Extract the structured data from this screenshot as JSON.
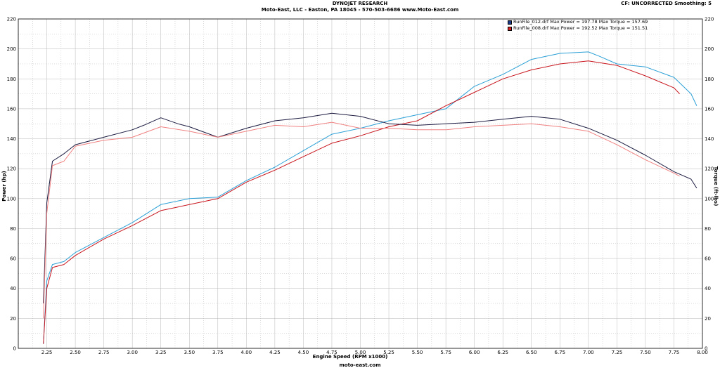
{
  "header": {
    "title": "DYNOJET RESEARCH",
    "subtitle": "Moto-East, LLC - Easton, PA 18045 - 570-503-6686 www.Moto-East.com",
    "correction": "CF: UNCORRECTED  Smoothing: 5",
    "footer": "moto-east.com"
  },
  "legend": [
    {
      "text": "RunFile_012.drf Max Power = 197.78    Max Torque = 157.69",
      "color": "#1b3a8c"
    },
    {
      "text": "RunFile_008.drf Max Power = 192.52    Max Torque = 151.51",
      "color": "#d42020"
    }
  ],
  "colors": {
    "run012_power": "#2a9fd6",
    "run012_torque": "#1a1a40",
    "run008_power": "#c8141c",
    "run008_torque": "#f08080",
    "grid": "#b8b8b8"
  },
  "chart_data": {
    "type": "line",
    "xlabel": "Engine Speed (RPM x1000)",
    "ylabel_left": "Power (hp)",
    "ylabel_right": "Torque (ft-lbs)",
    "xlim": [
      2.0,
      8.0
    ],
    "ylim": [
      0,
      220
    ],
    "xticks": [
      "2.25",
      "2.50",
      "2.75",
      "3.00",
      "3.25",
      "3.50",
      "3.75",
      "4.00",
      "4.25",
      "4.50",
      "4.75",
      "5.00",
      "5.25",
      "5.50",
      "5.75",
      "6.00",
      "6.25",
      "6.50",
      "6.75",
      "7.00",
      "7.25",
      "7.50",
      "7.75",
      "8.00"
    ],
    "yticks": [
      "0",
      "20",
      "40",
      "60",
      "80",
      "100",
      "120",
      "140",
      "160",
      "180",
      "200",
      "220"
    ],
    "grid": true,
    "series": [
      {
        "key": "run012_power",
        "x": [
          2.22,
          2.25,
          2.3,
          2.4,
          2.5,
          2.75,
          3.0,
          3.25,
          3.5,
          3.75,
          4.0,
          4.25,
          4.5,
          4.75,
          5.0,
          5.25,
          5.5,
          5.75,
          6.0,
          6.25,
          6.5,
          6.75,
          7.0,
          7.1,
          7.25,
          7.5,
          7.75,
          7.9,
          7.95
        ],
        "y": [
          3,
          45,
          56,
          58,
          64,
          74,
          84,
          96,
          100,
          101,
          112,
          121,
          132,
          143,
          147,
          152,
          156,
          160,
          175,
          183,
          193,
          197,
          198,
          195,
          190,
          188,
          181,
          170,
          162
        ]
      },
      {
        "key": "run008_power",
        "x": [
          2.22,
          2.25,
          2.3,
          2.4,
          2.5,
          2.75,
          3.0,
          3.25,
          3.5,
          3.75,
          4.0,
          4.25,
          4.5,
          4.75,
          5.0,
          5.25,
          5.5,
          5.75,
          6.0,
          6.25,
          6.5,
          6.75,
          7.0,
          7.25,
          7.5,
          7.75,
          7.8
        ],
        "y": [
          3,
          40,
          54,
          56,
          62,
          73,
          82,
          92,
          96,
          100,
          111,
          119,
          128,
          137,
          142,
          148,
          152,
          162,
          171,
          180,
          186,
          190,
          192,
          189,
          182,
          174,
          170
        ]
      },
      {
        "key": "run012_torque",
        "x": [
          2.22,
          2.25,
          2.3,
          2.4,
          2.5,
          2.75,
          3.0,
          3.1,
          3.25,
          3.4,
          3.5,
          3.75,
          4.0,
          4.25,
          4.5,
          4.75,
          5.0,
          5.25,
          5.5,
          5.75,
          6.0,
          6.25,
          6.5,
          6.75,
          7.0,
          7.25,
          7.5,
          7.75,
          7.9,
          7.95
        ],
        "y": [
          30,
          97,
          125,
          130,
          136,
          141,
          146,
          149,
          154,
          150,
          148,
          141,
          147,
          152,
          154,
          157,
          155,
          150,
          149,
          150,
          151,
          153,
          155,
          153,
          147,
          139,
          129,
          118,
          113,
          107
        ]
      },
      {
        "key": "run008_torque",
        "x": [
          2.22,
          2.25,
          2.3,
          2.4,
          2.5,
          2.75,
          3.0,
          3.25,
          3.5,
          3.75,
          4.0,
          4.25,
          4.5,
          4.75,
          5.0,
          5.25,
          5.5,
          5.75,
          6.0,
          6.25,
          6.5,
          6.75,
          7.0,
          7.25,
          7.5,
          7.75,
          7.8
        ],
        "y": [
          20,
          90,
          122,
          125,
          135,
          139,
          141,
          148,
          145,
          141,
          145,
          149,
          148,
          151,
          147,
          147,
          146,
          146,
          148,
          149,
          150,
          148,
          145,
          136,
          126,
          117,
          115
        ]
      }
    ]
  }
}
